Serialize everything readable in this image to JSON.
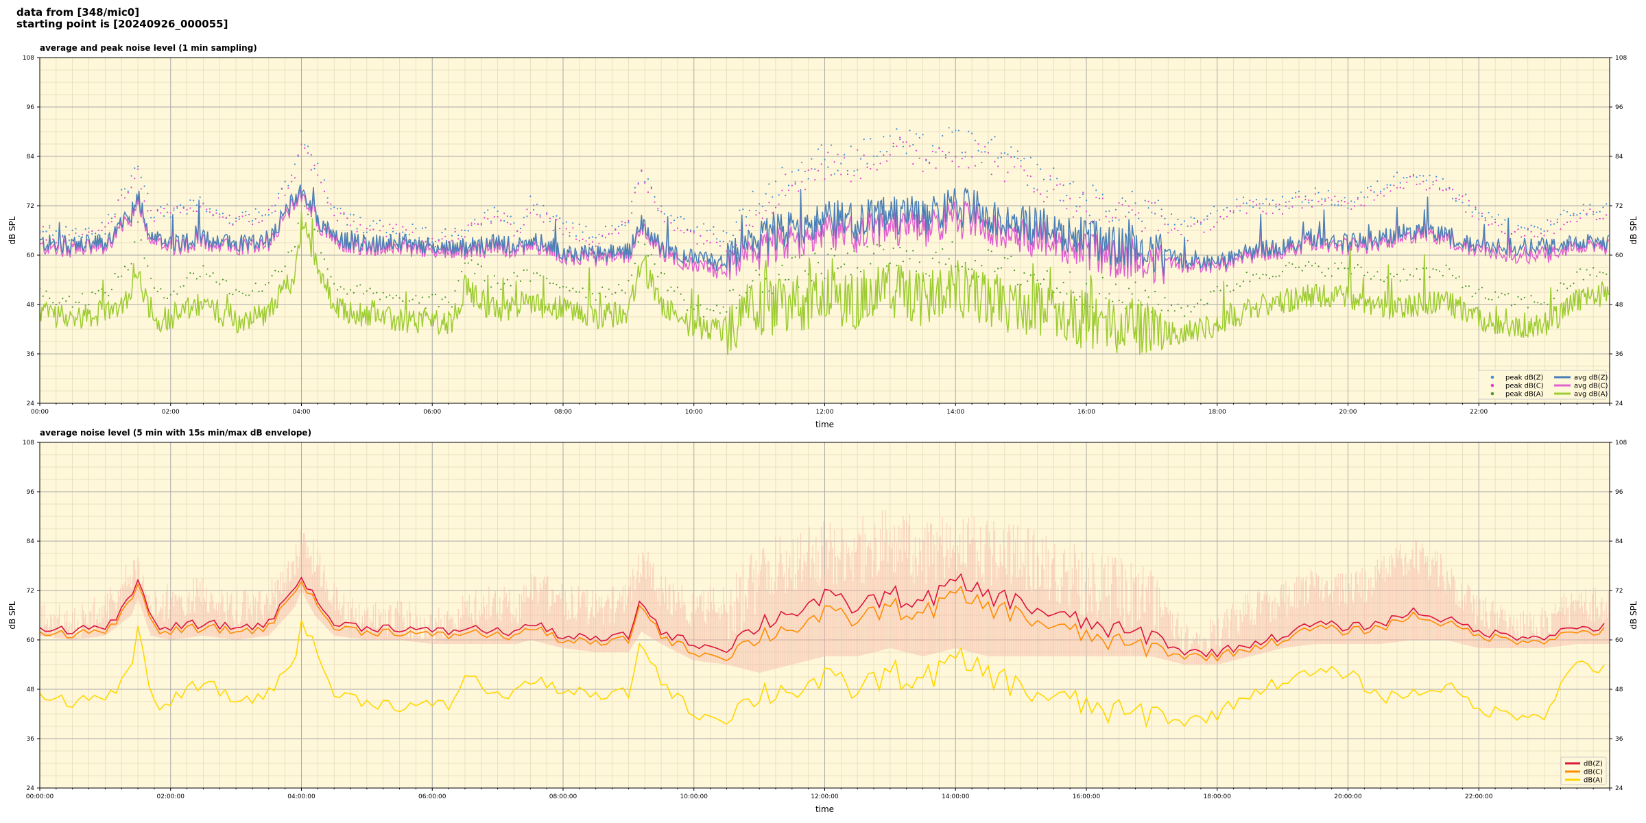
{
  "figure": {
    "title_line1": "data from [348/mic0]",
    "title_line2": "starting point is [20240926_000055]"
  },
  "colors": {
    "background": "#fff7d9",
    "peak_z": "#3a8fd6",
    "peak_c": "#e040d0",
    "peak_a": "#4a9a30",
    "avg_z": "#4a7fb5",
    "avg_c": "#e060d0",
    "avg_a": "#9ccc30",
    "dbz": "#dc143c",
    "dbc": "#ff8c00",
    "dba": "#ffd700",
    "envelope": "#f4b8a8"
  },
  "chart_data": [
    {
      "type": "line",
      "title": "average and peak noise level (1 min sampling)",
      "xlabel": "time",
      "ylabel": "dB SPL",
      "ylim": [
        24,
        108
      ],
      "yticks": [
        24,
        36,
        48,
        60,
        72,
        84,
        96,
        108
      ],
      "xlim_hours": [
        0,
        24
      ],
      "xtick_labels": [
        "00:00",
        "02:00",
        "04:00",
        "06:00",
        "08:00",
        "10:00",
        "12:00",
        "14:00",
        "16:00",
        "18:00",
        "20:00",
        "22:00"
      ],
      "grid": true,
      "legend_position": "lower-right",
      "legend": [
        "peak dB(Z)",
        "peak dB(C)",
        "peak dB(A)",
        "avg dB(Z)",
        "avg dB(C)",
        "avg dB(A)"
      ],
      "x_hours": [
        0,
        0.5,
        1,
        1.4,
        1.5,
        1.7,
        2,
        2.5,
        3,
        3.5,
        3.9,
        4,
        4.2,
        4.5,
        5,
        5.5,
        6,
        6.3,
        6.5,
        7,
        7.3,
        7.5,
        8,
        8.5,
        9,
        9.2,
        9.5,
        10,
        10.5,
        11,
        11.5,
        12,
        12.5,
        13,
        13.5,
        14,
        14.5,
        15,
        15.5,
        16,
        16.5,
        17,
        17.5,
        18,
        18.5,
        19,
        19.5,
        20,
        20.5,
        21,
        21.5,
        22,
        22.5,
        23,
        23.5,
        24
      ],
      "series": [
        {
          "name": "avg dB(Z)",
          "values": [
            63,
            62.5,
            63,
            70,
            75,
            64,
            63,
            64,
            63,
            64,
            74,
            76,
            70,
            64,
            63,
            63,
            62,
            62,
            62,
            63,
            62,
            64,
            61,
            60,
            61,
            68,
            62,
            59,
            58,
            64,
            66,
            69,
            68,
            70,
            69,
            72,
            70,
            68,
            66,
            64,
            62,
            61,
            58,
            58,
            61,
            62,
            64,
            63,
            64,
            66,
            65,
            62,
            62,
            62,
            63,
            63
          ]
        },
        {
          "name": "avg dB(C)",
          "values": [
            62,
            61.5,
            62,
            69,
            74,
            63,
            62,
            63,
            62,
            63,
            73,
            75,
            69,
            63,
            62,
            62,
            61,
            61,
            61,
            62,
            61,
            63,
            60,
            59,
            60,
            67,
            61,
            57,
            56,
            61,
            63,
            66,
            65,
            67,
            66,
            69,
            67,
            65,
            63,
            61,
            59,
            58,
            57,
            57,
            60,
            61,
            63,
            62,
            63,
            65,
            64,
            61,
            60,
            60,
            62,
            62
          ]
        },
        {
          "name": "avg dB(A)",
          "values": [
            46,
            45,
            46,
            50,
            57,
            44,
            45,
            48,
            44,
            46,
            55,
            68,
            60,
            47,
            45,
            44,
            44,
            44,
            52,
            46,
            48,
            48,
            47,
            45,
            46,
            58,
            48,
            42,
            42,
            47,
            48,
            50,
            49,
            52,
            49,
            52,
            49,
            47,
            46,
            44,
            43,
            42,
            41,
            43,
            47,
            49,
            50,
            50,
            47,
            48,
            49,
            44,
            43,
            43,
            49,
            51
          ]
        },
        {
          "name": "peak dB(Z)",
          "values": [
            66,
            64,
            66,
            78,
            80,
            70,
            70,
            72,
            68,
            70,
            80,
            88,
            82,
            70,
            66,
            66,
            64,
            64,
            66,
            70,
            66,
            72,
            66,
            64,
            68,
            80,
            70,
            66,
            64,
            72,
            78,
            82,
            82,
            86,
            84,
            86,
            84,
            80,
            76,
            72,
            70,
            70,
            66,
            70,
            72,
            72,
            74,
            72,
            76,
            80,
            76,
            70,
            66,
            66,
            70,
            70
          ]
        },
        {
          "name": "peak dB(C)",
          "values": [
            65,
            63,
            65,
            77,
            79,
            69,
            69,
            71,
            67,
            69,
            79,
            86,
            80,
            69,
            65,
            65,
            63,
            63,
            65,
            69,
            65,
            71,
            65,
            63,
            67,
            79,
            69,
            64,
            62,
            70,
            76,
            80,
            80,
            84,
            82,
            84,
            82,
            78,
            74,
            70,
            68,
            68,
            64,
            68,
            71,
            71,
            73,
            71,
            75,
            78,
            75,
            69,
            65,
            65,
            69,
            69
          ]
        },
        {
          "name": "peak dB(A)",
          "values": [
            50,
            48,
            50,
            58,
            66,
            52,
            50,
            56,
            50,
            52,
            62,
            74,
            66,
            52,
            50,
            48,
            48,
            48,
            58,
            52,
            54,
            54,
            52,
            50,
            52,
            64,
            54,
            46,
            46,
            52,
            54,
            56,
            56,
            58,
            56,
            58,
            56,
            54,
            52,
            50,
            48,
            48,
            46,
            50,
            54,
            56,
            56,
            56,
            54,
            55,
            55,
            50,
            48,
            48,
            54,
            56
          ]
        }
      ]
    },
    {
      "type": "line",
      "title": "average noise level (5 min with 15s min/max dB envelope)",
      "xlabel": "time",
      "ylabel": "dB SPL",
      "ylim": [
        24,
        108
      ],
      "yticks": [
        24,
        36,
        48,
        60,
        72,
        84,
        96,
        108
      ],
      "xlim_hours": [
        0,
        24
      ],
      "xtick_labels": [
        "00:00:00",
        "02:00:00",
        "04:00:00",
        "06:00:00",
        "08:00:00",
        "10:00:00",
        "12:00:00",
        "14:00:00",
        "16:00:00",
        "18:00:00",
        "20:00:00",
        "22:00:00"
      ],
      "grid": true,
      "legend_position": "lower-right",
      "legend": [
        "dB(Z)",
        "dB(C)",
        "dB(A)"
      ],
      "x_hours": [
        0,
        0.5,
        1,
        1.4,
        1.5,
        1.7,
        2,
        2.5,
        3,
        3.5,
        3.9,
        4,
        4.2,
        4.5,
        5,
        5.5,
        6,
        6.3,
        6.5,
        7,
        7.3,
        7.5,
        8,
        8.5,
        9,
        9.2,
        9.5,
        10,
        10.5,
        11,
        11.5,
        12,
        12.5,
        13,
        13.5,
        14,
        14.5,
        15,
        15.5,
        16,
        16.5,
        17,
        17.5,
        18,
        18.5,
        19,
        19.5,
        20,
        20.5,
        21,
        21.5,
        22,
        22.5,
        23,
        23.5,
        24
      ],
      "series": [
        {
          "name": "dB(Z)",
          "values": [
            63,
            62.5,
            63,
            70,
            75,
            64,
            63,
            64,
            63,
            64,
            73,
            76,
            70,
            64,
            63,
            63,
            62,
            62,
            63,
            62,
            62,
            64,
            61,
            60,
            61,
            70,
            62,
            59,
            58,
            64,
            67,
            70,
            68,
            71,
            69,
            74,
            71,
            69,
            66,
            64,
            62,
            61,
            57,
            57,
            59,
            61,
            64,
            63,
            64,
            67,
            65,
            62,
            61,
            61,
            63,
            63
          ]
        },
        {
          "name": "dB(C)",
          "values": [
            62,
            61.5,
            62,
            69,
            74,
            63,
            62,
            63,
            62,
            63,
            72,
            75,
            69,
            63,
            62,
            62,
            61,
            61,
            62,
            61,
            61,
            63,
            60,
            59,
            60,
            69,
            61,
            57,
            56,
            61,
            63,
            66,
            65,
            68,
            66,
            71,
            68,
            66,
            63,
            61,
            59,
            58,
            56,
            56,
            58,
            60,
            63,
            62,
            63,
            66,
            64,
            61,
            60,
            60,
            62,
            62
          ]
        },
        {
          "name": "dB(A)",
          "values": [
            47,
            45,
            46,
            52,
            64,
            44,
            45,
            50,
            45,
            47,
            55,
            66,
            58,
            47,
            45,
            44,
            44,
            44,
            52,
            46,
            48,
            50,
            48,
            46,
            47,
            60,
            50,
            42,
            41,
            47,
            48,
            50,
            48,
            52,
            50,
            55,
            52,
            48,
            46,
            44,
            42,
            42,
            40,
            42,
            47,
            50,
            52,
            52,
            46,
            47,
            49,
            43,
            42,
            42,
            55,
            52
          ]
        },
        {
          "name": "envelope max",
          "values": [
            70,
            68,
            72,
            80,
            82,
            72,
            74,
            76,
            72,
            74,
            82,
            90,
            84,
            74,
            70,
            70,
            68,
            68,
            72,
            74,
            72,
            78,
            74,
            72,
            74,
            84,
            76,
            72,
            74,
            84,
            88,
            90,
            90,
            92,
            90,
            92,
            90,
            88,
            86,
            82,
            80,
            78,
            64,
            66,
            72,
            74,
            78,
            76,
            80,
            86,
            80,
            72,
            68,
            68,
            74,
            72
          ]
        },
        {
          "name": "envelope min",
          "values": [
            61,
            60,
            61,
            66,
            70,
            61,
            60,
            61,
            60,
            61,
            68,
            72,
            66,
            61,
            60,
            60,
            59,
            59,
            59,
            59,
            59,
            60,
            58,
            57,
            57,
            62,
            59,
            55,
            54,
            52,
            54,
            56,
            56,
            58,
            56,
            58,
            56,
            56,
            56,
            56,
            56,
            56,
            54,
            54,
            56,
            58,
            59,
            59,
            59,
            60,
            60,
            58,
            58,
            58,
            59,
            59
          ]
        }
      ]
    }
  ]
}
